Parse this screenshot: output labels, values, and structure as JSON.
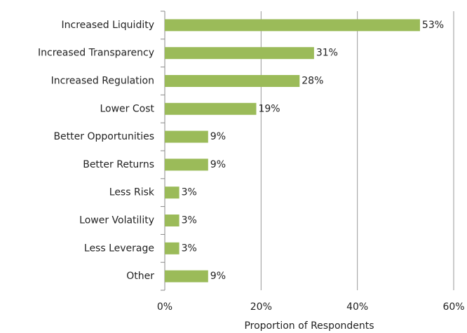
{
  "chart_data": {
    "type": "barh",
    "categories": [
      "Increased Liquidity",
      "Increased Transparency",
      "Increased Regulation",
      "Lower Cost",
      "Better Opportunities",
      "Better Returns",
      "Less Risk",
      "Lower Volatility",
      "Less Leverage",
      "Other"
    ],
    "values": [
      53,
      31,
      28,
      19,
      9,
      9,
      3,
      3,
      3,
      9
    ],
    "value_labels": [
      "53%",
      "31%",
      "28%",
      "19%",
      "9%",
      "9%",
      "3%",
      "3%",
      "3%",
      "9%"
    ],
    "color": "#9bbb59",
    "xlim": [
      0,
      60
    ],
    "xticks": [
      {
        "value": 0,
        "label": "0%"
      },
      {
        "value": 20,
        "label": "20%"
      },
      {
        "value": 40,
        "label": "40%"
      },
      {
        "value": 60,
        "label": "60%"
      }
    ],
    "xlabel": "Proportion of Respondents",
    "grid": true
  }
}
